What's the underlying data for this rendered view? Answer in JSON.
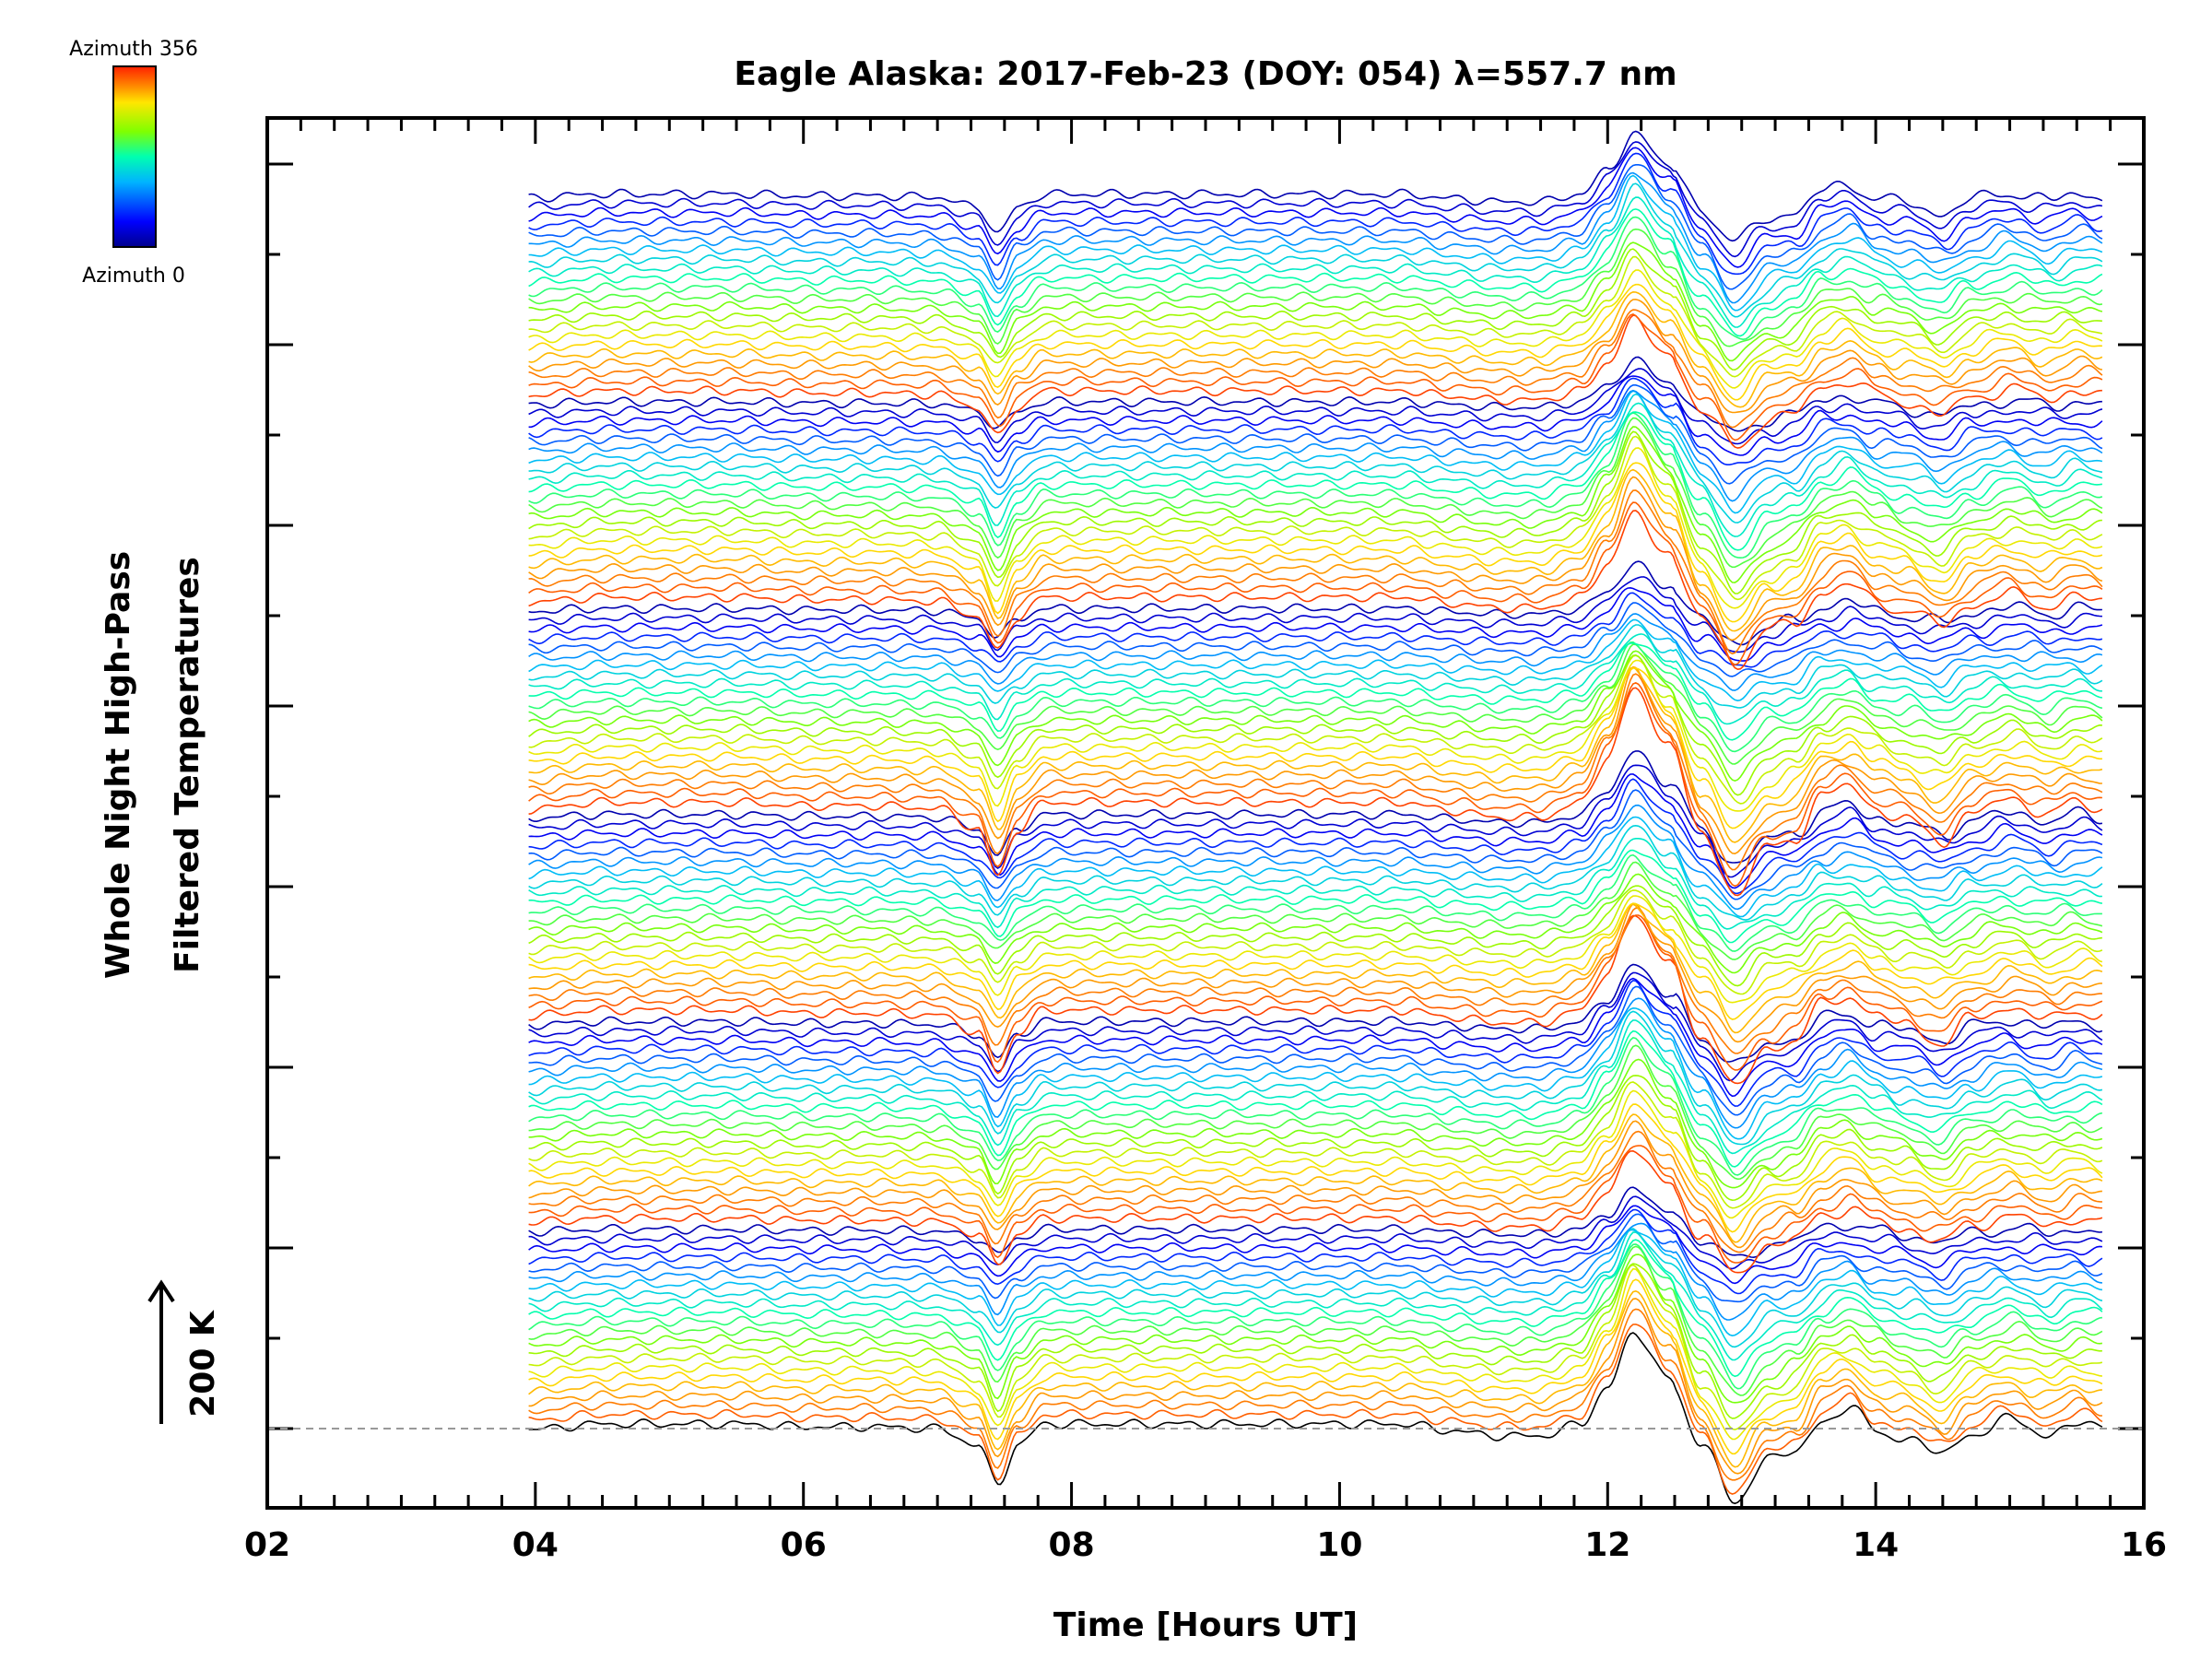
{
  "chart_data": {
    "type": "line",
    "title": "Eagle Alaska: 2017-Feb-23 (DOY: 054) λ=557.7 nm",
    "xlabel": "Time [Hours UT]",
    "ylabel_line1": "Whole Night High-Pass",
    "ylabel_line2": "Filtered Temperatures",
    "xlim": [
      2,
      16
    ],
    "x_ticks": [
      "02",
      "04",
      "06",
      "08",
      "10",
      "12",
      "14",
      "16"
    ],
    "scale_bar_label": "200 K",
    "colorbar": {
      "top_label": "Azimuth 356",
      "bottom_label": "Azimuth 0",
      "colormap": [
        "#00008c",
        "#0000ff",
        "#00b4ff",
        "#00ffb0",
        "#80ff00",
        "#ffe600",
        "#ff8000",
        "#ff2000"
      ]
    },
    "series_count": 132,
    "time_range": [
      3.95,
      15.7
    ],
    "profile_points": [
      [
        3.95,
        -1
      ],
      [
        4.5,
        5
      ],
      [
        5.0,
        5
      ],
      [
        5.5,
        5
      ],
      [
        6.0,
        2
      ],
      [
        6.5,
        2
      ],
      [
        7.0,
        0
      ],
      [
        7.3,
        -18
      ],
      [
        7.45,
        -60
      ],
      [
        7.6,
        -18
      ],
      [
        7.8,
        5
      ],
      [
        9.0,
        5
      ],
      [
        10.5,
        5
      ],
      [
        10.8,
        -2
      ],
      [
        11.2,
        -8
      ],
      [
        11.5,
        -8
      ],
      [
        11.8,
        5
      ],
      [
        12.0,
        45
      ],
      [
        12.2,
        105
      ],
      [
        12.45,
        55
      ],
      [
        12.7,
        -20
      ],
      [
        12.95,
        -75
      ],
      [
        13.2,
        -35
      ],
      [
        13.4,
        -25
      ],
      [
        13.6,
        10
      ],
      [
        13.8,
        20
      ],
      [
        14.0,
        0
      ],
      [
        14.2,
        -10
      ],
      [
        14.5,
        -28
      ],
      [
        14.7,
        -5
      ],
      [
        15.0,
        8
      ],
      [
        15.3,
        -5
      ],
      [
        15.5,
        5
      ],
      [
        15.7,
        0
      ]
    ]
  }
}
